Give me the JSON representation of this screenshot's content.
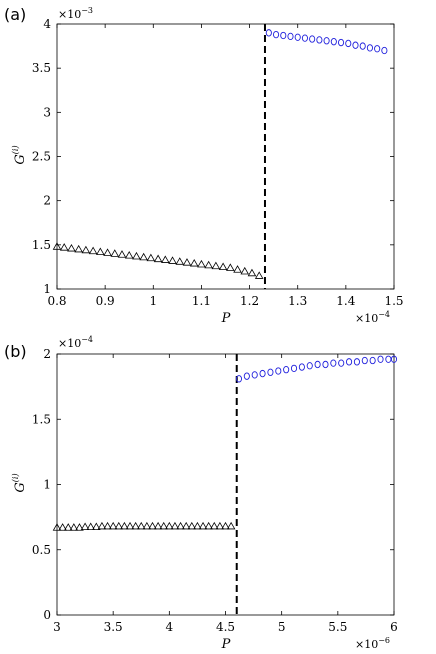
{
  "chart_data": [
    {
      "type": "scatter",
      "panel_label": "(a)",
      "xlabel": "P",
      "ylabel": "G",
      "ylabel_superscript": "(i)",
      "x_multiplier": {
        "base": "×10",
        "exp": "−4"
      },
      "y_multiplier": {
        "base": "×10",
        "exp": "−3"
      },
      "xlim": [
        0.8,
        1.5
      ],
      "ylim": [
        1,
        4
      ],
      "xticks": [
        "0.8",
        "0.9",
        "1",
        "1.1",
        "1.2",
        "1.3",
        "1.4",
        "1.5"
      ],
      "yticks": [
        "1",
        "1.5",
        "2",
        "2.5",
        "3",
        "3.5",
        "4"
      ],
      "xtick_values": [
        0.8,
        0.9,
        1.0,
        1.1,
        1.2,
        1.3,
        1.4,
        1.5
      ],
      "ytick_values": [
        1,
        1.5,
        2,
        2.5,
        3,
        3.5,
        4
      ],
      "transition_x": 1.232,
      "series": [
        {
          "marker": "triangle",
          "color": "#000000",
          "x": [
            0.8,
            0.815,
            0.83,
            0.845,
            0.86,
            0.875,
            0.89,
            0.905,
            0.92,
            0.935,
            0.95,
            0.965,
            0.98,
            0.995,
            1.01,
            1.025,
            1.04,
            1.055,
            1.07,
            1.085,
            1.1,
            1.115,
            1.13,
            1.145,
            1.16,
            1.175,
            1.19,
            1.205,
            1.22
          ],
          "y": [
            1.48,
            1.47,
            1.46,
            1.45,
            1.44,
            1.43,
            1.42,
            1.41,
            1.4,
            1.39,
            1.38,
            1.37,
            1.36,
            1.35,
            1.34,
            1.33,
            1.32,
            1.31,
            1.3,
            1.29,
            1.28,
            1.27,
            1.26,
            1.25,
            1.24,
            1.22,
            1.2,
            1.18,
            1.15
          ]
        },
        {
          "marker": "circle",
          "color": "#2222dd",
          "x": [
            1.24,
            1.255,
            1.27,
            1.285,
            1.3,
            1.315,
            1.33,
            1.345,
            1.36,
            1.375,
            1.39,
            1.405,
            1.42,
            1.435,
            1.45,
            1.465,
            1.48
          ],
          "y": [
            3.9,
            3.88,
            3.87,
            3.86,
            3.85,
            3.84,
            3.83,
            3.82,
            3.81,
            3.8,
            3.79,
            3.78,
            3.76,
            3.75,
            3.73,
            3.72,
            3.7
          ]
        }
      ]
    },
    {
      "type": "scatter",
      "panel_label": "(b)",
      "xlabel": "P",
      "ylabel": "G",
      "ylabel_superscript": "(i)",
      "x_multiplier": {
        "base": "×10",
        "exp": "−6"
      },
      "y_multiplier": {
        "base": "×10",
        "exp": "−4"
      },
      "xlim": [
        3,
        6
      ],
      "ylim": [
        0,
        2
      ],
      "xticks": [
        "3",
        "3.5",
        "4",
        "4.5",
        "5",
        "5.5",
        "6"
      ],
      "yticks": [
        "0",
        "0.5",
        "1",
        "1.5",
        "2"
      ],
      "xtick_values": [
        3,
        3.5,
        4,
        4.5,
        5,
        5.5,
        6
      ],
      "ytick_values": [
        0,
        0.5,
        1,
        1.5,
        2
      ],
      "transition_x": 4.6,
      "series": [
        {
          "marker": "triangle",
          "color": "#000000",
          "x": [
            3.0,
            3.05,
            3.1,
            3.15,
            3.2,
            3.25,
            3.3,
            3.35,
            3.4,
            3.45,
            3.5,
            3.55,
            3.6,
            3.65,
            3.7,
            3.75,
            3.8,
            3.85,
            3.9,
            3.95,
            4.0,
            4.05,
            4.1,
            4.15,
            4.2,
            4.25,
            4.3,
            4.35,
            4.4,
            4.45,
            4.5,
            4.55
          ],
          "y": [
            0.67,
            0.67,
            0.67,
            0.67,
            0.67,
            0.675,
            0.675,
            0.675,
            0.68,
            0.68,
            0.68,
            0.68,
            0.68,
            0.68,
            0.68,
            0.68,
            0.68,
            0.68,
            0.68,
            0.68,
            0.68,
            0.68,
            0.68,
            0.68,
            0.68,
            0.68,
            0.68,
            0.68,
            0.68,
            0.68,
            0.68,
            0.68
          ]
        },
        {
          "marker": "circle",
          "color": "#2222dd",
          "x": [
            4.62,
            4.69,
            4.76,
            4.83,
            4.9,
            4.97,
            5.04,
            5.11,
            5.18,
            5.25,
            5.32,
            5.39,
            5.46,
            5.53,
            5.6,
            5.67,
            5.74,
            5.81,
            5.88,
            5.95,
            6.0
          ],
          "y": [
            1.81,
            1.83,
            1.84,
            1.85,
            1.86,
            1.87,
            1.88,
            1.89,
            1.9,
            1.91,
            1.92,
            1.92,
            1.93,
            1.93,
            1.94,
            1.94,
            1.95,
            1.95,
            1.96,
            1.96,
            1.96
          ]
        }
      ]
    }
  ]
}
